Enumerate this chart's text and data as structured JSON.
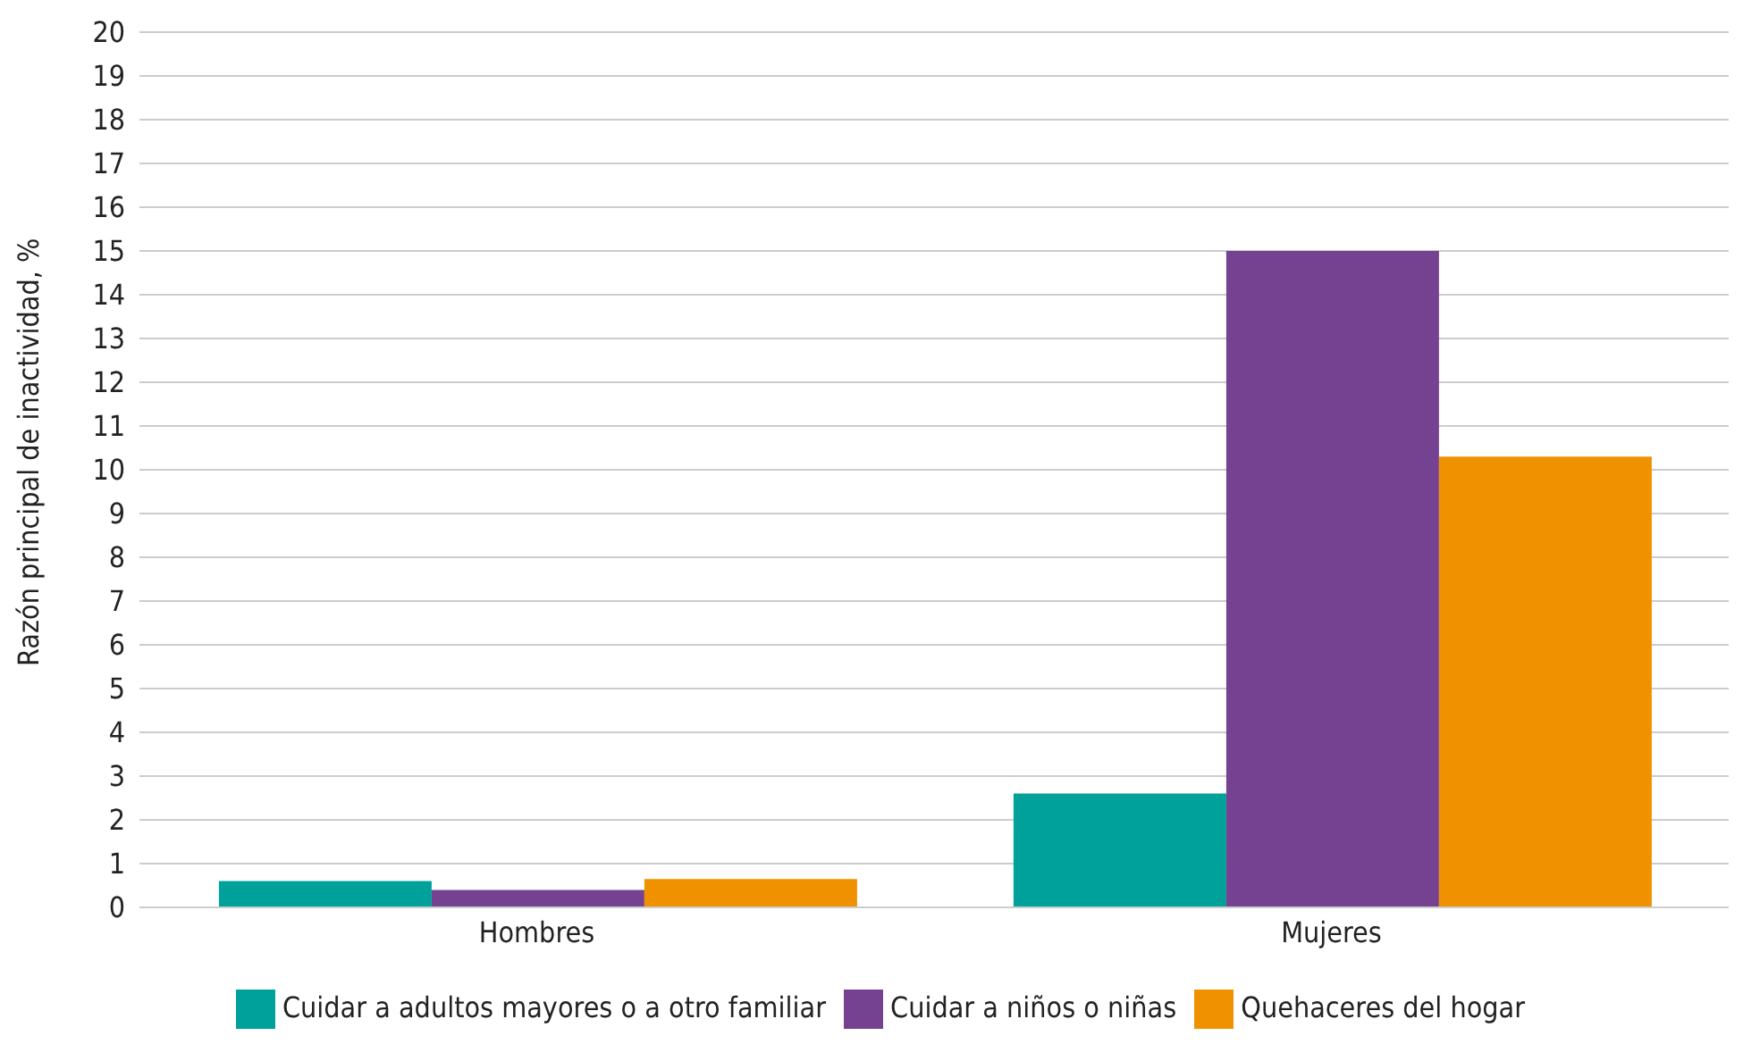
{
  "chart_data": {
    "type": "bar",
    "ylabel": "Razón principal de inactividad, %",
    "categories": [
      "Hombres",
      "Mujeres"
    ],
    "series": [
      {
        "name": "Cuidar a adultos mayores o a otro familiar",
        "color": "#00a19a",
        "values": [
          0.6,
          2.6
        ]
      },
      {
        "name": "Cuidar a niños o niñas",
        "color": "#744290",
        "values": [
          0.4,
          15
        ]
      },
      {
        "name": "Quehaceres del hogar",
        "color": "#f09200",
        "values": [
          0.65,
          10.3
        ]
      }
    ],
    "ylim": [
      0,
      20
    ],
    "yticks": [
      0,
      1,
      2,
      3,
      4,
      5,
      6,
      7,
      8,
      9,
      10,
      11,
      12,
      13,
      14,
      15,
      16,
      17,
      18,
      19,
      20
    ],
    "grid": "y",
    "legend": "bottom"
  }
}
